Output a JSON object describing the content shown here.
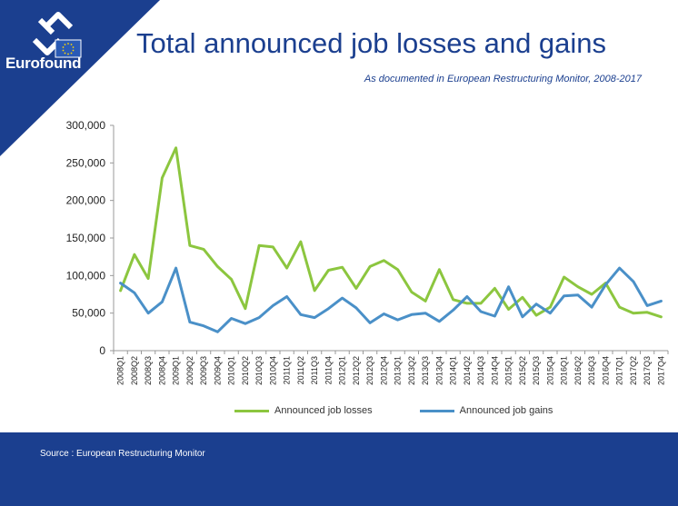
{
  "brand": {
    "name": "Eurofound",
    "logo_icon": "eurofound-logo-icon",
    "flag_icon": "eu-flag-icon"
  },
  "header": {
    "title": "Total announced job losses and gains",
    "subtitle": "As documented in European Restructuring Monitor, 2008-2017"
  },
  "footer": {
    "source": "Source : European Restructuring Monitor"
  },
  "colors": {
    "brand_blue": "#1b3f8f",
    "losses": "#8cc63f",
    "gains": "#4a90c8"
  },
  "chart_data": {
    "type": "line",
    "title": "Total announced job losses and gains",
    "xlabel": "",
    "ylabel": "",
    "ylim": [
      0,
      300000
    ],
    "yticks": [
      0,
      50000,
      100000,
      150000,
      200000,
      250000,
      300000
    ],
    "ytick_labels": [
      "0",
      "50,000",
      "100,000",
      "150,000",
      "200,000",
      "250,000",
      "300,000"
    ],
    "grid": false,
    "legend_position": "bottom",
    "categories": [
      "2008Q1",
      "2008Q2",
      "2008Q3",
      "2008Q4",
      "2009Q1",
      "2009Q2",
      "2009Q3",
      "2009Q4",
      "2010Q1",
      "2010Q2",
      "2010Q3",
      "2010Q4",
      "2011Q1",
      "2011Q2",
      "2011Q3",
      "2011Q4",
      "2012Q1",
      "2012Q2",
      "2012Q3",
      "2012Q4",
      "2013Q1",
      "2013Q2",
      "2013Q3",
      "2013Q4",
      "2014Q1",
      "2014Q2",
      "2014Q3",
      "2014Q4",
      "2015Q1",
      "2015Q2",
      "2015Q3",
      "2015Q4",
      "2016Q1",
      "2016Q2",
      "2016Q3",
      "2016Q4",
      "2017Q1",
      "2017Q2",
      "2017Q3",
      "2017Q4"
    ],
    "series": [
      {
        "name": "Announced job losses",
        "color": "#8cc63f",
        "values": [
          80000,
          128000,
          96000,
          230000,
          270000,
          140000,
          135000,
          112000,
          95000,
          56000,
          140000,
          138000,
          110000,
          145000,
          80000,
          107000,
          111000,
          83000,
          112000,
          120000,
          108000,
          78000,
          66000,
          108000,
          68000,
          63000,
          63000,
          83000,
          55000,
          71000,
          47000,
          58000,
          98000,
          85000,
          75000,
          90000,
          58000,
          50000,
          51000,
          45000
        ]
      },
      {
        "name": "Announced job gains",
        "color": "#4a90c8",
        "values": [
          90000,
          77000,
          50000,
          65000,
          110000,
          38000,
          33000,
          25000,
          43000,
          36000,
          44000,
          60000,
          72000,
          48000,
          44000,
          56000,
          70000,
          57000,
          37000,
          49000,
          41000,
          48000,
          50000,
          39000,
          54000,
          72000,
          52000,
          46000,
          85000,
          45000,
          62000,
          50000,
          73000,
          74000,
          58000,
          88000,
          110000,
          92000,
          60000,
          66000
        ]
      }
    ]
  }
}
